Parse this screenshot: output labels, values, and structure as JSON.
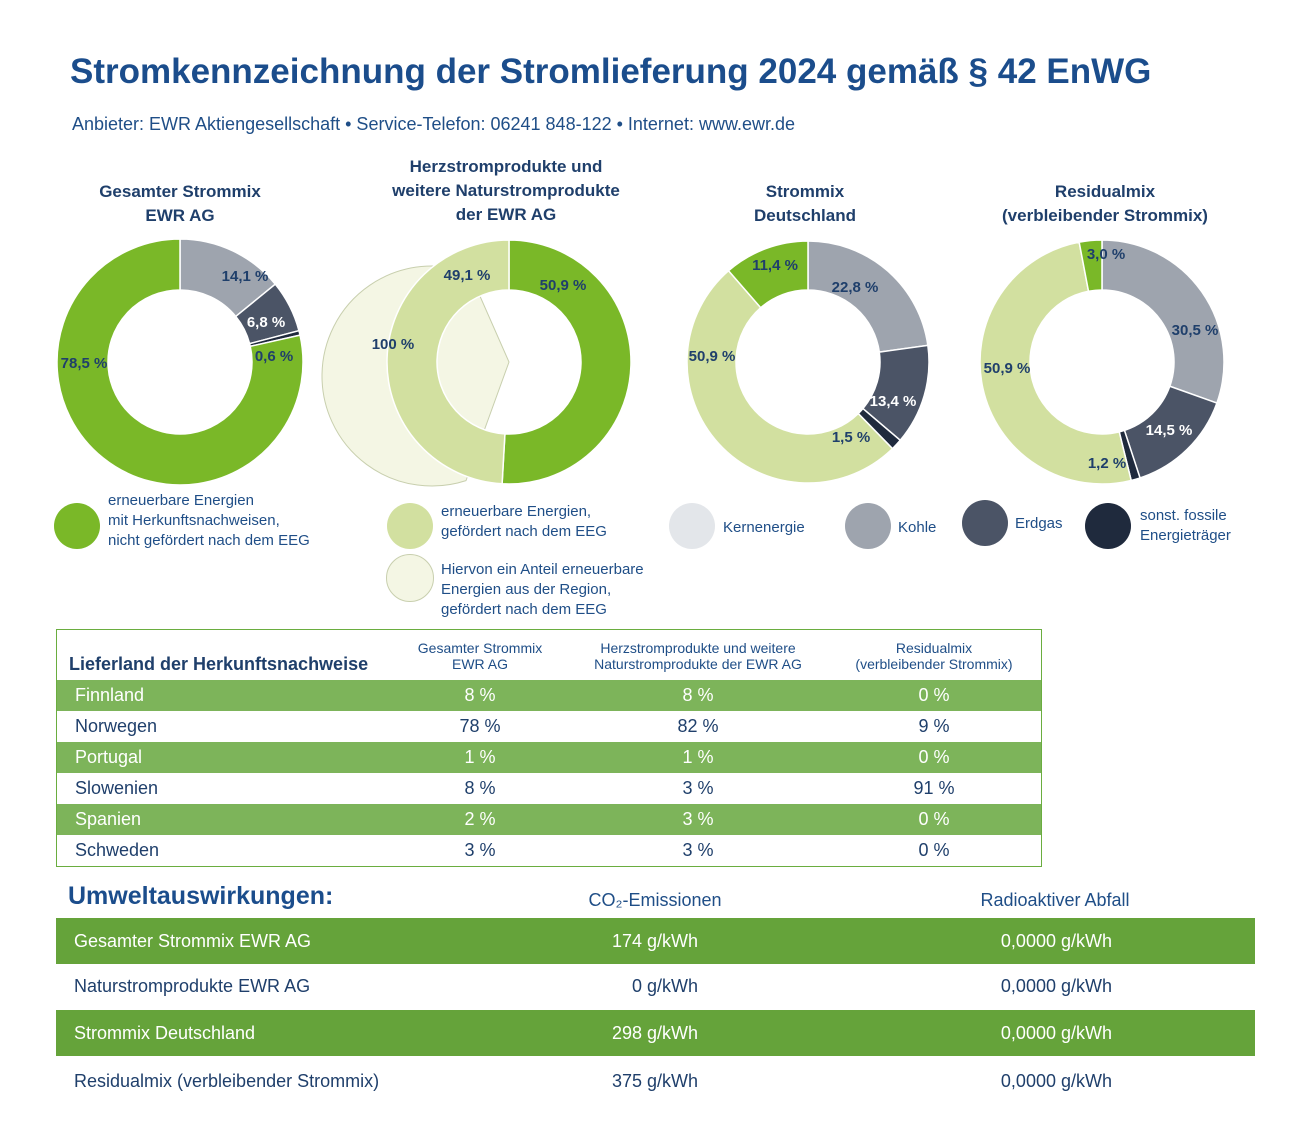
{
  "header": {
    "title": "Stromkennzeichnung der Stromlieferung 2024 gemäß § 42 EnWG",
    "subtitle": "Anbieter: EWR Aktiengesellschaft • Service-Telefon: 06241 848-122 • Internet: www.ewr.de"
  },
  "colors": {
    "ee_green": "#7ab828",
    "eeg_light": "#d2e0a0",
    "region_pale": "#f4f6e4",
    "kern": "#e3e6ea",
    "kohle": "#9ea4ae",
    "erdgas": "#4b5466",
    "fossil": "#1f2a3d",
    "navy": "#1b4d8c"
  },
  "chart_data": [
    {
      "type": "pie",
      "title": "Gesamter Strommix EWR AG",
      "donut": true,
      "slices": [
        {
          "category": "Kohle",
          "value": 14.1,
          "label": "14,1 %",
          "color": "#9ea4ae"
        },
        {
          "category": "Erdgas",
          "value": 6.8,
          "label": "6,8 %",
          "color": "#4b5466"
        },
        {
          "category": "sonst. fossile Energieträger",
          "value": 0.6,
          "label": "0,6 %",
          "color": "#1f2a3d"
        },
        {
          "category": "erneuerbare Energien mit Herkunftsnachweisen, nicht gefördert nach dem EEG",
          "value": 78.5,
          "label": "78,5 %",
          "color": "#7ab828"
        }
      ]
    },
    {
      "type": "pie",
      "title": "Herzstromprodukte und weitere Naturstromprodukte der EWR AG",
      "donut": true,
      "slices": [
        {
          "category": "erneuerbare Energien mit Herkunftsnachweisen, nicht gefördert nach dem EEG",
          "value": 50.9,
          "label": "50,9 %",
          "color": "#7ab828"
        },
        {
          "category": "erneuerbare Energien, gefördert nach dem EEG",
          "value": 49.1,
          "label": "49,1 %",
          "color": "#d2e0a0"
        }
      ],
      "exploded": {
        "category": "Hiervon ein Anteil erneuerbare Energien aus der Region, gefördert nach dem EEG",
        "value": 100,
        "label": "100 %",
        "color": "#f4f6e4"
      }
    },
    {
      "type": "pie",
      "title": "Strommix Deutschland",
      "donut": true,
      "slices": [
        {
          "category": "Kohle",
          "value": 22.8,
          "label": "22,8 %",
          "color": "#9ea4ae"
        },
        {
          "category": "Erdgas",
          "value": 13.4,
          "label": "13,4 %",
          "color": "#4b5466"
        },
        {
          "category": "sonst. fossile Energieträger",
          "value": 1.5,
          "label": "1,5 %",
          "color": "#1f2a3d"
        },
        {
          "category": "erneuerbare Energien, gefördert nach dem EEG",
          "value": 50.9,
          "label": "50,9 %",
          "color": "#d2e0a0"
        },
        {
          "category": "erneuerbare Energien mit Herkunftsnachweisen, nicht gefördert nach dem EEG",
          "value": 11.4,
          "label": "11,4 %",
          "color": "#7ab828"
        }
      ]
    },
    {
      "type": "pie",
      "title": "Residualmix (verbleibender Strommix)",
      "donut": true,
      "slices": [
        {
          "category": "Kohle",
          "value": 30.5,
          "label": "30,5 %",
          "color": "#9ea4ae"
        },
        {
          "category": "Erdgas",
          "value": 14.5,
          "label": "14,5 %",
          "color": "#4b5466"
        },
        {
          "category": "sonst. fossile Energieträger",
          "value": 1.2,
          "label": "1,2 %",
          "color": "#1f2a3d"
        },
        {
          "category": "erneuerbare Energien, gefördert nach dem EEG",
          "value": 50.9,
          "label": "50,9 %",
          "color": "#d2e0a0"
        },
        {
          "category": "erneuerbare Energien mit Herkunftsnachweisen, nicht gefördert nach dem EEG",
          "value": 3.0,
          "label": "3,0 %",
          "color": "#7ab828"
        }
      ]
    }
  ],
  "chart_titles": [
    {
      "line1": "Gesamter Strommix",
      "line2": "EWR AG",
      "line3": ""
    },
    {
      "line1": "Herzstromprodukte und",
      "line2": "weitere Naturstromprodukte",
      "line3": "der EWR AG"
    },
    {
      "line1": "Strommix",
      "line2": "Deutschland",
      "line3": ""
    },
    {
      "line1": "Residualmix",
      "line2": "(verbleibender Strommix)",
      "line3": ""
    }
  ],
  "legend": {
    "ee": {
      "line1": "erneuerbare Energien",
      "line2": "mit Herkunftsnachweisen,",
      "line3": "nicht gefördert nach dem EEG",
      "color": "#7ab828"
    },
    "eeg": {
      "line1": "erneuerbare Energien,",
      "line2": "gefördert nach dem EEG",
      "color": "#d2e0a0"
    },
    "region": {
      "line1": "Hiervon ein Anteil erneuerbare",
      "line2": "Energien aus der Region,",
      "line3": "gefördert nach dem EEG",
      "color": "#f4f6e4"
    },
    "kern": {
      "label": "Kernenergie",
      "color": "#e3e6ea"
    },
    "kohle": {
      "label": "Kohle",
      "color": "#9ea4ae"
    },
    "erdgas": {
      "label": "Erdgas",
      "color": "#4b5466"
    },
    "fossil": {
      "line1": "sonst. fossile",
      "line2": "Energieträger",
      "color": "#1f2a3d"
    }
  },
  "origin_table": {
    "headers": [
      "Lieferland der Herkunftsnachweise",
      "Gesamter Strommix\nEWR AG",
      "Herzstromprodukte und weitere\nNaturstromprodukte der EWR AG",
      "Residualmix\n(verbleibender Strommix)"
    ],
    "rows": [
      {
        "country": "Finnland",
        "gesamt": "8 %",
        "natur": "8 %",
        "residual": "0 %"
      },
      {
        "country": "Norwegen",
        "gesamt": "78 %",
        "natur": "82 %",
        "residual": "9 %"
      },
      {
        "country": "Portugal",
        "gesamt": "1 %",
        "natur": "1 %",
        "residual": "0 %"
      },
      {
        "country": "Slowenien",
        "gesamt": "8 %",
        "natur": "3 %",
        "residual": "91 %"
      },
      {
        "country": "Spanien",
        "gesamt": "2 %",
        "natur": "3 %",
        "residual": "0 %"
      },
      {
        "country": "Schweden",
        "gesamt": "3 %",
        "natur": "3 %",
        "residual": "0 %"
      }
    ]
  },
  "environment": {
    "title": "Umweltauswirkungen:",
    "col_co2": "CO₂-Emissionen",
    "col_waste": "Radioaktiver Abfall",
    "rows": [
      {
        "label": "Gesamter Strommix EWR AG",
        "co2": "174 g/kWh",
        "waste": "0,0000 g/kWh"
      },
      {
        "label": "Naturstromprodukte EWR AG",
        "co2": "0 g/kWh",
        "waste": "0,0000 g/kWh"
      },
      {
        "label": "Strommix Deutschland",
        "co2": "298 g/kWh",
        "waste": "0,0000 g/kWh"
      },
      {
        "label": "Residualmix (verbleibender Strommix)",
        "co2": "375 g/kWh",
        "waste": "0,0000 g/kWh"
      }
    ]
  }
}
